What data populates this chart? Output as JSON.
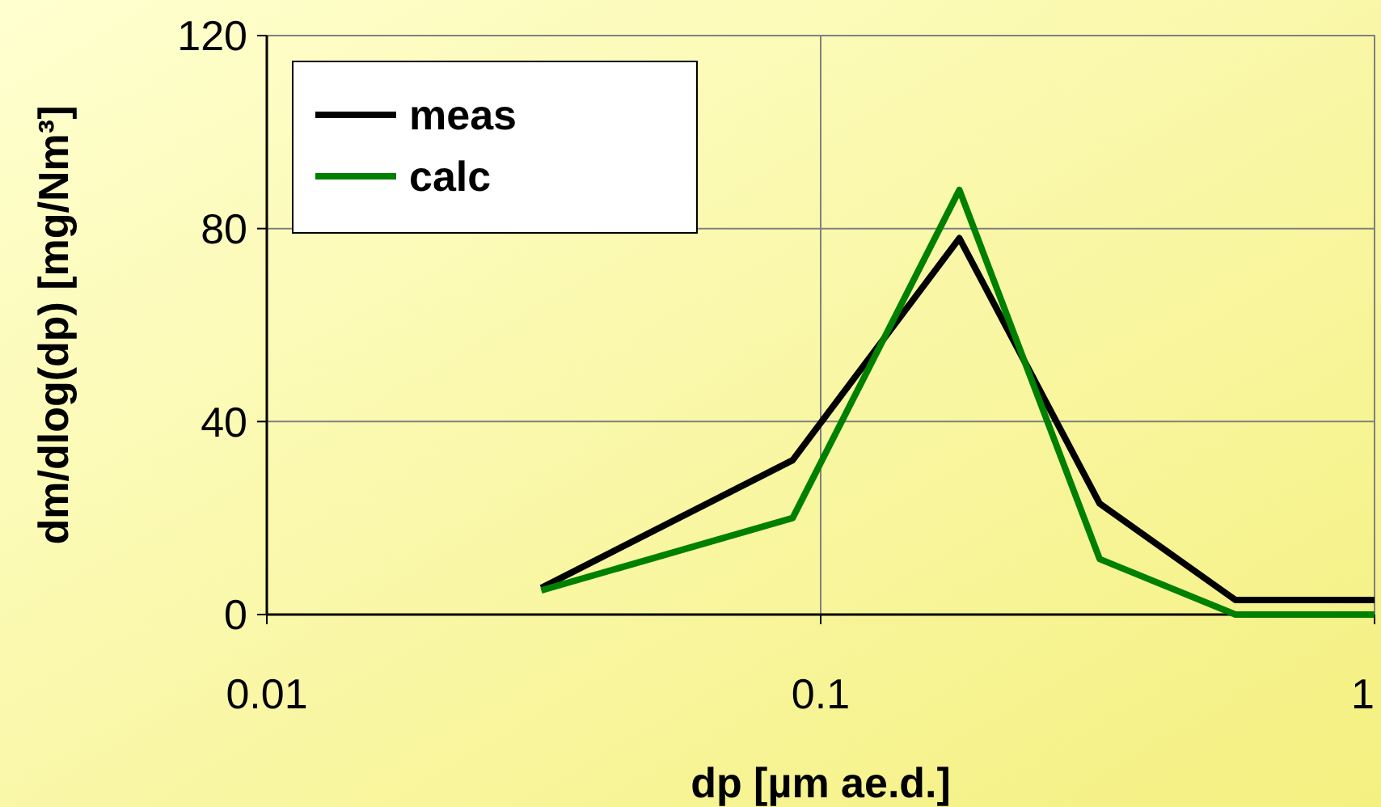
{
  "chart_data": {
    "type": "line",
    "xlabel": "dp [µm ae.d.]",
    "ylabel": "dm/dlog(dp) [mg/Nm³]",
    "x": [
      0.0313,
      0.089,
      0.178,
      0.319,
      0.561,
      1
    ],
    "series": [
      {
        "name": "meas",
        "color": "#000000",
        "values": [
          5.5,
          32,
          78,
          23,
          3,
          3
        ]
      },
      {
        "name": "calc",
        "color": "#008000",
        "values": [
          5,
          20,
          88,
          11.5,
          0,
          0
        ]
      }
    ],
    "xlim": [
      0.01,
      1
    ],
    "xticks": [
      0.01,
      0.1,
      1
    ],
    "ylim": [
      0,
      120
    ],
    "yticks": [
      0,
      40,
      80,
      120
    ],
    "log": "x",
    "grid": true,
    "legend": "top left",
    "marker": "none",
    "line_style": "solid"
  }
}
